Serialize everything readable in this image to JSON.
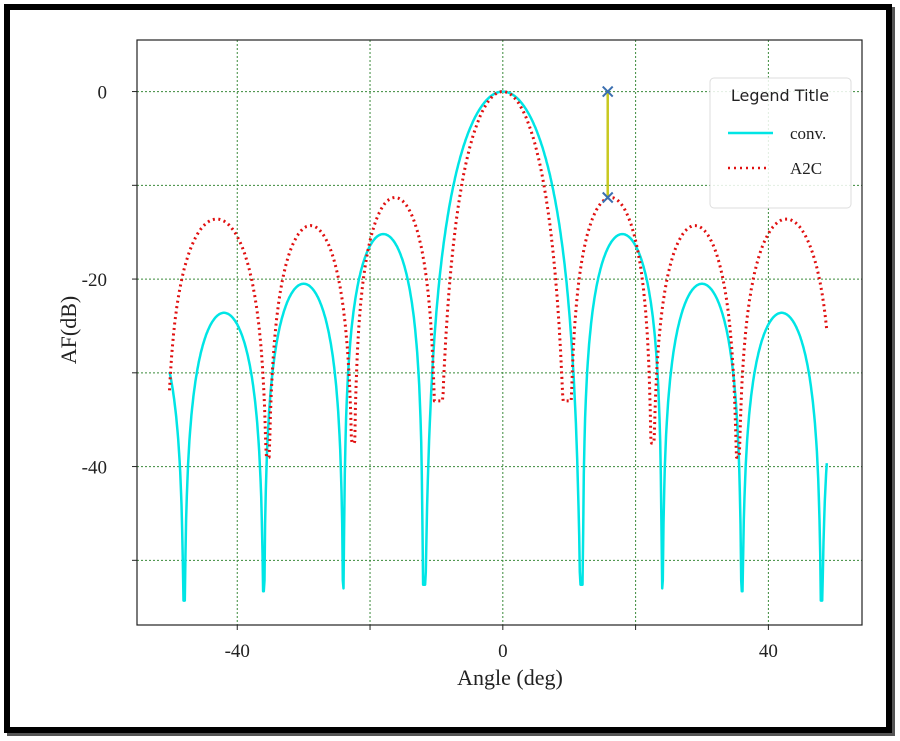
{
  "chart_data": {
    "type": "line",
    "title": "",
    "xlabel": "Angle (deg)",
    "ylabel": "AF(dB)",
    "xlim": [
      -55.1,
      54.1
    ],
    "ylim": [
      -56.9,
      5.5
    ],
    "xticks": [
      -40,
      0,
      40
    ],
    "xgrid": [
      -40,
      -20,
      0,
      20,
      40
    ],
    "yticks": [
      0,
      -20,
      -40
    ],
    "ygrid": [
      0,
      -10,
      -20,
      -30,
      -40,
      -50
    ],
    "grid": true,
    "legend": {
      "title": "Legend Title",
      "placement": "top-right"
    },
    "series": [
      {
        "name": "conv.",
        "color": "#00e5e5",
        "style": "solid",
        "x_range": [
          -50.2,
          48.8
        ],
        "lobes": [
          {
            "start": -58,
            "end": -48,
            "peak": -26,
            "null_left": -54,
            "null_right": -54.3
          },
          {
            "start": -48,
            "end": -36,
            "peak": -23.6,
            "null_left": -54.3,
            "null_right": -53.3
          },
          {
            "start": -36,
            "end": -24,
            "peak": -20.5,
            "null_left": -53.3,
            "null_right": -53
          },
          {
            "start": -24,
            "end": -12,
            "peak": -15.2,
            "null_left": -53,
            "null_right": -52.6
          },
          {
            "start": -12,
            "end": 12,
            "peak": 0,
            "null_left": -52.6,
            "null_right": -52.6
          },
          {
            "start": 12,
            "end": 24,
            "peak": -15.2,
            "null_left": -52.6,
            "null_right": -53
          },
          {
            "start": 24,
            "end": 36,
            "peak": -20.5,
            "null_left": -53,
            "null_right": -53.3
          },
          {
            "start": 36,
            "end": 48,
            "peak": -23.6,
            "null_left": -53.3,
            "null_right": -54.3
          },
          {
            "start": 48,
            "end": 60,
            "peak": -26,
            "null_left": -54.3,
            "null_right": -54
          }
        ]
      },
      {
        "name": "A2C",
        "color": "#e01010",
        "style": "dotted",
        "x_range": [
          -50.2,
          48.8
        ],
        "lobes": [
          {
            "start": -50.8,
            "end": -35.4,
            "peak": -13.6,
            "null_left": -39,
            "null_right": -39
          },
          {
            "start": -35.4,
            "end": -22.5,
            "peak": -14.3,
            "null_left": -39,
            "null_right": -37.5
          },
          {
            "start": -22.5,
            "end": -10,
            "peak": -11.3,
            "null_left": -37.5,
            "null_right": -33
          },
          {
            "start": -10,
            "end": 10,
            "peak": 0,
            "null_left": -33,
            "null_right": -33
          },
          {
            "start": 10,
            "end": 22.5,
            "peak": -11.3,
            "null_left": -33,
            "null_right": -37.5
          },
          {
            "start": 22.5,
            "end": 35.4,
            "peak": -14.3,
            "null_left": -37.5,
            "null_right": -39
          },
          {
            "start": 35.4,
            "end": 50,
            "peak": -13.6,
            "null_left": -39,
            "null_right": -39
          }
        ]
      }
    ],
    "annotation": {
      "type": "markers-with-line",
      "x": 15.8,
      "y_top": 0,
      "y_bottom": -11.3,
      "line_color": "#c8c820",
      "marker_color": "#3b6fb0"
    }
  }
}
